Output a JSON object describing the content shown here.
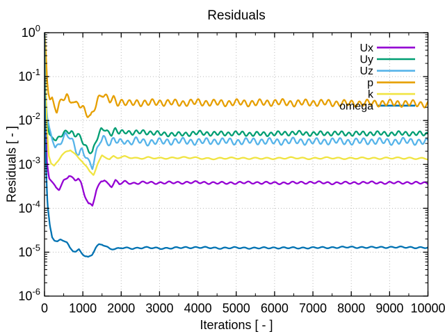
{
  "chart_data": {
    "type": "line",
    "title": "Residuals",
    "xlabel": "Iterations [ - ]",
    "ylabel": "Residuals [ - ]",
    "x_range": [
      0,
      10000
    ],
    "y_scale": "log10",
    "y_range": [
      1e-06,
      1
    ],
    "x_ticks": [
      0,
      1000,
      2000,
      3000,
      4000,
      5000,
      6000,
      7000,
      8000,
      9000,
      10000
    ],
    "x_minor_step": 500,
    "y_tick_exponents": [
      0,
      -1,
      -2,
      -3,
      -4,
      -5,
      -6
    ],
    "grid": "dotted-major",
    "grid_color": "#b8b8b8",
    "frame_color": "#000000",
    "legend_position": "top-right-inside",
    "series": [
      {
        "name": "Ux",
        "color": "#9400d3",
        "oscillation": {
          "amp_log": 0.022,
          "period": 230,
          "phase": 0.8
        },
        "keypoints": [
          [
            0,
            1.0
          ],
          [
            25,
            0.02
          ],
          [
            60,
            0.0012
          ],
          [
            120,
            0.00048
          ],
          [
            200,
            0.0004
          ],
          [
            300,
            0.0003
          ],
          [
            380,
            0.00027
          ],
          [
            500,
            0.00042
          ],
          [
            640,
            0.00055
          ],
          [
            720,
            0.00048
          ],
          [
            800,
            0.00044
          ],
          [
            880,
            0.00049
          ],
          [
            950,
            0.00038
          ],
          [
            1050,
            0.0002
          ],
          [
            1150,
            0.000125
          ],
          [
            1250,
            0.000115
          ],
          [
            1350,
            0.00025
          ],
          [
            1480,
            0.00042
          ],
          [
            1560,
            0.00045
          ],
          [
            1650,
            0.00036
          ],
          [
            1750,
            0.00032
          ],
          [
            1850,
            0.00042
          ],
          [
            1950,
            0.00036
          ],
          [
            2100,
            0.0004
          ],
          [
            2300,
            0.00037
          ],
          [
            2600,
            0.000385
          ],
          [
            3000,
            0.00038
          ],
          [
            3500,
            0.000385
          ],
          [
            4000,
            0.00039
          ],
          [
            4500,
            0.000375
          ],
          [
            5000,
            0.00038
          ],
          [
            5500,
            0.000385
          ],
          [
            6000,
            0.000375
          ],
          [
            6500,
            0.00038
          ],
          [
            7000,
            0.00039
          ],
          [
            7500,
            0.000375
          ],
          [
            8000,
            0.00038
          ],
          [
            8500,
            0.000385
          ],
          [
            9000,
            0.00038
          ],
          [
            9500,
            0.000385
          ],
          [
            10000,
            0.00037
          ]
        ]
      },
      {
        "name": "Uy",
        "color": "#009e73",
        "oscillation": {
          "amp_log": 0.042,
          "period": 185,
          "phase": 2.1
        },
        "keypoints": [
          [
            0,
            1.0
          ],
          [
            25,
            0.05
          ],
          [
            60,
            0.012
          ],
          [
            120,
            0.005
          ],
          [
            200,
            0.0041
          ],
          [
            300,
            0.0035
          ],
          [
            400,
            0.0042
          ],
          [
            500,
            0.0052
          ],
          [
            600,
            0.0059
          ],
          [
            700,
            0.0055
          ],
          [
            780,
            0.0045
          ],
          [
            860,
            0.0048
          ],
          [
            950,
            0.0038
          ],
          [
            1050,
            0.0028
          ],
          [
            1150,
            0.0021
          ],
          [
            1250,
            0.0019
          ],
          [
            1350,
            0.0035
          ],
          [
            1480,
            0.0061
          ],
          [
            1560,
            0.0066
          ],
          [
            1650,
            0.0055
          ],
          [
            1750,
            0.005
          ],
          [
            1850,
            0.0061
          ],
          [
            1950,
            0.0052
          ],
          [
            2100,
            0.0057
          ],
          [
            2300,
            0.0052
          ],
          [
            2600,
            0.0055
          ],
          [
            3000,
            0.005
          ],
          [
            3500,
            0.0048
          ],
          [
            4000,
            0.0052
          ],
          [
            4500,
            0.005
          ],
          [
            5000,
            0.0051
          ],
          [
            5500,
            0.0049
          ],
          [
            6000,
            0.005
          ],
          [
            6500,
            0.0052
          ],
          [
            7000,
            0.005
          ],
          [
            7500,
            0.0051
          ],
          [
            8000,
            0.005
          ],
          [
            8500,
            0.0051
          ],
          [
            9000,
            0.005
          ],
          [
            9500,
            0.0051
          ],
          [
            10000,
            0.0049
          ]
        ]
      },
      {
        "name": "Uz",
        "color": "#56b4e9",
        "oscillation": {
          "amp_log": 0.06,
          "period": 205,
          "phase": 4.0
        },
        "keypoints": [
          [
            0,
            1.0
          ],
          [
            30,
            0.04
          ],
          [
            70,
            0.012
          ],
          [
            130,
            0.0065
          ],
          [
            200,
            0.0038
          ],
          [
            280,
            0.0024
          ],
          [
            360,
            0.0028
          ],
          [
            450,
            0.0036
          ],
          [
            550,
            0.0046
          ],
          [
            640,
            0.0044
          ],
          [
            730,
            0.0032
          ],
          [
            820,
            0.0021
          ],
          [
            900,
            0.0017
          ],
          [
            980,
            0.0023
          ],
          [
            1060,
            0.0017
          ],
          [
            1150,
            0.0011
          ],
          [
            1250,
            0.00085
          ],
          [
            1350,
            0.0018
          ],
          [
            1450,
            0.0036
          ],
          [
            1530,
            0.0043
          ],
          [
            1620,
            0.0035
          ],
          [
            1720,
            0.0028
          ],
          [
            1820,
            0.0038
          ],
          [
            1920,
            0.0031
          ],
          [
            2050,
            0.0036
          ],
          [
            2200,
            0.0031
          ],
          [
            2400,
            0.0035
          ],
          [
            2700,
            0.0032
          ],
          [
            3000,
            0.0033
          ],
          [
            3500,
            0.0034
          ],
          [
            4000,
            0.0033
          ],
          [
            4500,
            0.0034
          ],
          [
            5000,
            0.0033
          ],
          [
            5500,
            0.0034
          ],
          [
            6000,
            0.0033
          ],
          [
            6500,
            0.0034
          ],
          [
            7000,
            0.0033
          ],
          [
            7500,
            0.0034
          ],
          [
            8000,
            0.0033
          ],
          [
            8500,
            0.0034
          ],
          [
            9000,
            0.0033
          ],
          [
            9500,
            0.0034
          ],
          [
            10000,
            0.0032
          ]
        ]
      },
      {
        "name": "p",
        "color": "#e69f00",
        "oscillation": {
          "amp_log": 0.062,
          "period": 200,
          "phase": 1.2
        },
        "keypoints": [
          [
            0,
            1.0
          ],
          [
            20,
            0.6
          ],
          [
            45,
            0.22
          ],
          [
            70,
            0.08
          ],
          [
            100,
            0.042
          ],
          [
            140,
            0.03
          ],
          [
            200,
            0.033
          ],
          [
            260,
            0.021
          ],
          [
            320,
            0.016
          ],
          [
            380,
            0.024
          ],
          [
            450,
            0.028
          ],
          [
            520,
            0.033
          ],
          [
            580,
            0.036
          ],
          [
            650,
            0.026
          ],
          [
            720,
            0.031
          ],
          [
            800,
            0.024
          ],
          [
            880,
            0.027
          ],
          [
            960,
            0.02
          ],
          [
            1040,
            0.017
          ],
          [
            1120,
            0.013
          ],
          [
            1200,
            0.0115
          ],
          [
            1300,
            0.02
          ],
          [
            1400,
            0.032
          ],
          [
            1500,
            0.041
          ],
          [
            1600,
            0.033
          ],
          [
            1700,
            0.028
          ],
          [
            1800,
            0.032
          ],
          [
            1900,
            0.026
          ],
          [
            2000,
            0.027
          ],
          [
            2200,
            0.024
          ],
          [
            2400,
            0.026
          ],
          [
            2700,
            0.025
          ],
          [
            3000,
            0.026
          ],
          [
            3500,
            0.025
          ],
          [
            4000,
            0.026
          ],
          [
            4500,
            0.025
          ],
          [
            5000,
            0.0255
          ],
          [
            5500,
            0.025
          ],
          [
            6000,
            0.026
          ],
          [
            6500,
            0.025
          ],
          [
            7000,
            0.0255
          ],
          [
            7500,
            0.025
          ],
          [
            8000,
            0.0245
          ],
          [
            8500,
            0.025
          ],
          [
            9000,
            0.025
          ],
          [
            9500,
            0.0245
          ],
          [
            10000,
            0.0235
          ]
        ]
      },
      {
        "name": "k",
        "color": "#f0e442",
        "oscillation": {
          "amp_log": 0.016,
          "period": 310,
          "phase": 3.3
        },
        "keypoints": [
          [
            0,
            1.0
          ],
          [
            25,
            0.08
          ],
          [
            60,
            0.008
          ],
          [
            110,
            0.0016
          ],
          [
            170,
            0.00105
          ],
          [
            250,
            0.00092
          ],
          [
            350,
            0.0012
          ],
          [
            450,
            0.0016
          ],
          [
            560,
            0.0019
          ],
          [
            680,
            0.0022
          ],
          [
            780,
            0.0018
          ],
          [
            880,
            0.0014
          ],
          [
            980,
            0.0012
          ],
          [
            1080,
            0.00092
          ],
          [
            1180,
            0.00066
          ],
          [
            1280,
            0.00058
          ],
          [
            1380,
            0.001
          ],
          [
            1500,
            0.00158
          ],
          [
            1600,
            0.00148
          ],
          [
            1700,
            0.00132
          ],
          [
            1800,
            0.00152
          ],
          [
            1900,
            0.00142
          ],
          [
            2100,
            0.00148
          ],
          [
            2400,
            0.00138
          ],
          [
            2700,
            0.00143
          ],
          [
            3000,
            0.00136
          ],
          [
            3500,
            0.00144
          ],
          [
            4000,
            0.00139
          ],
          [
            4500,
            0.00135
          ],
          [
            5000,
            0.0014
          ],
          [
            5500,
            0.00136
          ],
          [
            6000,
            0.00138
          ],
          [
            6500,
            0.0014
          ],
          [
            7000,
            0.00137
          ],
          [
            7500,
            0.0014
          ],
          [
            8000,
            0.00137
          ],
          [
            8500,
            0.00139
          ],
          [
            9000,
            0.00138
          ],
          [
            9500,
            0.0014
          ],
          [
            10000,
            0.00133
          ]
        ]
      },
      {
        "name": "omega",
        "color": "#0072b2",
        "oscillation": {
          "amp_log": 0.014,
          "period": 255,
          "phase": 5.1
        },
        "keypoints": [
          [
            0,
            1.0
          ],
          [
            15,
            0.01
          ],
          [
            40,
            0.0008
          ],
          [
            80,
            0.00012
          ],
          [
            140,
            4e-05
          ],
          [
            200,
            2.2e-05
          ],
          [
            260,
            1.85e-05
          ],
          [
            340,
            1.75e-05
          ],
          [
            420,
            1.95e-05
          ],
          [
            500,
            1.85e-05
          ],
          [
            580,
            1.65e-05
          ],
          [
            660,
            1.25e-05
          ],
          [
            740,
            1.08e-05
          ],
          [
            820,
            1.02e-05
          ],
          [
            900,
            1.15e-05
          ],
          [
            980,
            9.5e-06
          ],
          [
            1060,
            8.2e-06
          ],
          [
            1140,
            7.6e-06
          ],
          [
            1240,
            8.8e-06
          ],
          [
            1340,
            1.25e-05
          ],
          [
            1420,
            1.48e-05
          ],
          [
            1500,
            1.52e-05
          ],
          [
            1600,
            1.35e-05
          ],
          [
            1700,
            1.22e-05
          ],
          [
            1850,
            1.18e-05
          ],
          [
            2000,
            1.25e-05
          ],
          [
            2300,
            1.22e-05
          ],
          [
            2600,
            1.28e-05
          ],
          [
            3000,
            1.22e-05
          ],
          [
            3500,
            1.26e-05
          ],
          [
            4000,
            1.29e-05
          ],
          [
            4500,
            1.24e-05
          ],
          [
            5000,
            1.26e-05
          ],
          [
            5500,
            1.24e-05
          ],
          [
            6000,
            1.26e-05
          ],
          [
            6500,
            1.25e-05
          ],
          [
            7000,
            1.26e-05
          ],
          [
            7500,
            1.28e-05
          ],
          [
            8000,
            1.3e-05
          ],
          [
            8500,
            1.28e-05
          ],
          [
            9000,
            1.3e-05
          ],
          [
            9500,
            1.29e-05
          ],
          [
            10000,
            1.26e-05
          ]
        ]
      }
    ]
  }
}
